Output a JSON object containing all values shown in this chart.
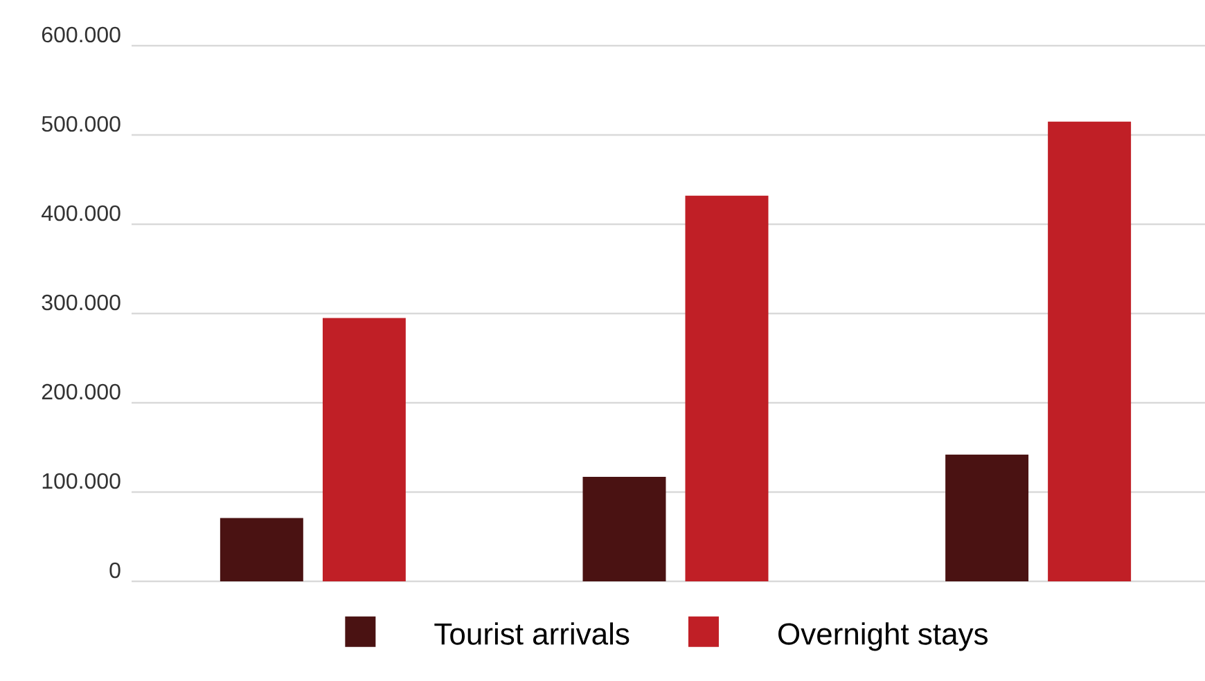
{
  "chart_data": {
    "type": "bar",
    "categories": [
      null,
      null,
      null
    ],
    "series": [
      {
        "name": "Tourist arrivals",
        "color": "#4a1212",
        "values": [
          71000,
          117000,
          142000
        ]
      },
      {
        "name": "Overnight stays",
        "color": "#c01f26",
        "values": [
          295000,
          432000,
          515000
        ]
      }
    ],
    "ylim": [
      0,
      600000
    ],
    "yticks": [
      0,
      {
        "value": 100000,
        "label": "100.000"
      },
      {
        "value": 200000,
        "label": "200.000"
      },
      {
        "value": 300000,
        "label": "300.000"
      },
      {
        "value": 400000,
        "label": "400.000"
      },
      {
        "value": 500000,
        "label": "500.000"
      },
      {
        "value": 600000,
        "label": "600.000"
      }
    ],
    "grid": "y",
    "legend": "bottom",
    "tick_labels": "y"
  }
}
